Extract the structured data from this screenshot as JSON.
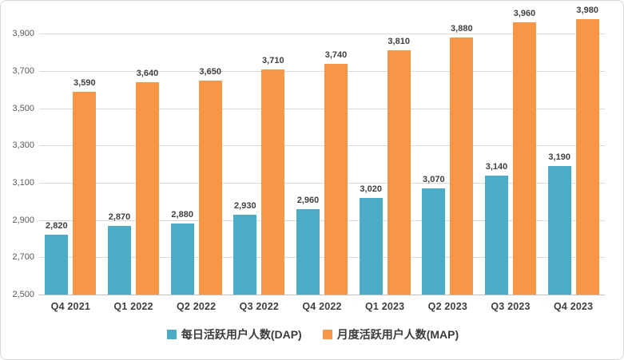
{
  "chart_data": {
    "type": "bar",
    "title": "",
    "xlabel": "",
    "ylabel": "",
    "categories": [
      "Q4 2021",
      "Q1 2022",
      "Q2 2022",
      "Q3 2022",
      "Q4 2022",
      "Q1 2023",
      "Q2 2023",
      "Q3 2023",
      "Q4 2023"
    ],
    "series": [
      {
        "id": "dap",
        "name": "每日活跃用户人数(DAP)",
        "color": "#4BACC6",
        "values": [
          2820,
          2870,
          2880,
          2930,
          2960,
          3020,
          3070,
          3140,
          3190
        ]
      },
      {
        "id": "map",
        "name": "月度活跃用户人数(MAP)",
        "color": "#F79646",
        "values": [
          3590,
          3640,
          3650,
          3710,
          3740,
          3810,
          3880,
          3960,
          3980
        ]
      }
    ],
    "ylim": [
      2500,
      4000
    ],
    "yticks": [
      2500,
      2700,
      2900,
      3100,
      3300,
      3500,
      3700,
      3900
    ],
    "grid": true,
    "data_labels": true,
    "legend_position": "bottom"
  },
  "colors": {
    "background": "#FFFFFF",
    "frame_border": "#D6D6D6",
    "gridline": "#D9D9D9",
    "axis_line": "#BFBFBF",
    "tick_label": "#595959",
    "data_label": "#404040",
    "category_label": "#404040",
    "legend_text": "#3B3B3B",
    "series_dap": "#4BACC6",
    "series_map": "#F79646"
  }
}
